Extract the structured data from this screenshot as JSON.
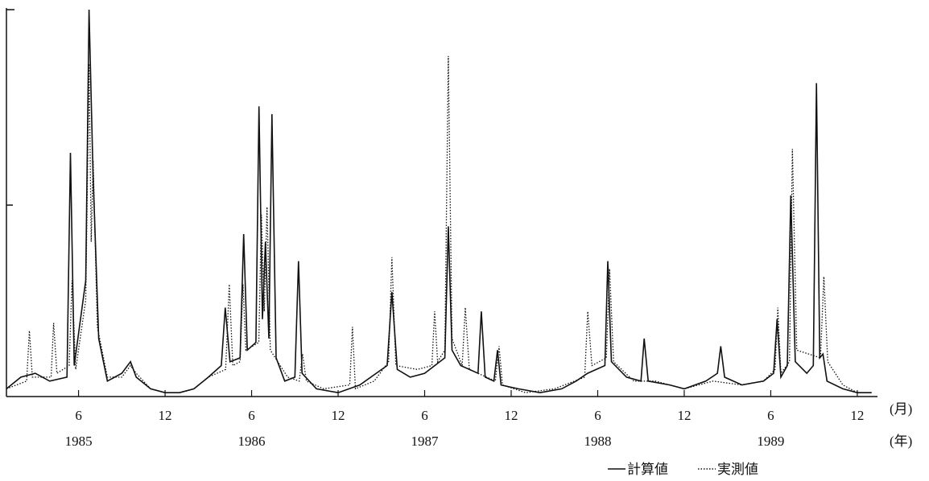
{
  "chart_data": {
    "type": "line",
    "x_unit_label": "(月)",
    "year_unit_label": "(年)",
    "xlim": [
      1,
      61.4
    ],
    "ylim": [
      0,
      100
    ],
    "xticks": [
      {
        "value": 6,
        "label": "6"
      },
      {
        "value": 12,
        "label": "12"
      },
      {
        "value": 18,
        "label": "6"
      },
      {
        "value": 24,
        "label": "12"
      },
      {
        "value": 30,
        "label": "6"
      },
      {
        "value": 36,
        "label": "12"
      },
      {
        "value": 42,
        "label": "6"
      },
      {
        "value": 48,
        "label": "12"
      },
      {
        "value": 54,
        "label": "6"
      },
      {
        "value": 60,
        "label": "12"
      }
    ],
    "year_labels": [
      {
        "value": 6,
        "label": "1985"
      },
      {
        "value": 18,
        "label": "1986"
      },
      {
        "value": 30,
        "label": "1987"
      },
      {
        "value": 42,
        "label": "1988"
      },
      {
        "value": 54,
        "label": "1989"
      }
    ],
    "series": [
      {
        "name": "計算値",
        "color": "#111111",
        "style": "solid",
        "x": [
          1,
          2,
          3,
          4,
          5.2,
          5.44,
          5.7,
          6.5,
          6.73,
          7.0,
          7.4,
          8,
          9,
          9.6,
          10,
          11,
          12,
          13,
          14,
          15,
          15.9,
          16.17,
          16.5,
          17.2,
          17.45,
          17.7,
          18.3,
          18.51,
          18.75,
          18.96,
          19.2,
          19.41,
          19.7,
          20.3,
          21.0,
          21.25,
          21.5,
          22.5,
          24,
          25.5,
          27.4,
          27.73,
          28.1,
          29,
          30,
          31.4,
          31.64,
          31.9,
          32.5,
          33.7,
          33.93,
          34.2,
          34.8,
          35.05,
          35.3,
          36.5,
          38,
          39.5,
          40.5,
          41.3,
          42.5,
          42.7,
          42.95,
          44,
          45.0,
          45.22,
          45.5,
          47,
          48,
          49.5,
          50.3,
          50.53,
          50.8,
          52,
          53.5,
          54.2,
          54.44,
          54.7,
          55.15,
          55.39,
          55.7,
          56.5,
          56.95,
          57.17,
          57.4,
          57.62,
          57.9,
          59,
          60,
          61
        ],
        "values": [
          2,
          5,
          6,
          4,
          5,
          63,
          8,
          30,
          100,
          58,
          15,
          4,
          6,
          9,
          5,
          2,
          1,
          1,
          2,
          5,
          8,
          23,
          9,
          10,
          42,
          12,
          14,
          75,
          20,
          40,
          15,
          73,
          10,
          4,
          5,
          35,
          6,
          2,
          1,
          3,
          8,
          27,
          7,
          5,
          6,
          10,
          44,
          12,
          8,
          6,
          22,
          5,
          4,
          12,
          3,
          2,
          1,
          2,
          4,
          6,
          8,
          35,
          9,
          5,
          4,
          15,
          4,
          3,
          2,
          4,
          6,
          13,
          5,
          3,
          4,
          6,
          20,
          5,
          8,
          52,
          9,
          6,
          8,
          81,
          10,
          11,
          4,
          2,
          1,
          1
        ]
      },
      {
        "name": "実測値",
        "color": "#111111",
        "style": "dotted",
        "x": [
          1,
          2.4,
          2.59,
          2.8,
          4.1,
          4.27,
          4.5,
          5.35,
          5.55,
          5.8,
          6.5,
          6.73,
          6.88,
          7.01,
          7.3,
          8,
          9,
          9.6,
          10,
          11,
          12,
          13,
          14,
          15,
          16.2,
          16.45,
          16.7,
          17.2,
          17.4,
          17.6,
          18.5,
          18.68,
          18.88,
          19.07,
          19.3,
          20.5,
          21.3,
          21.53,
          21.8,
          23,
          24.8,
          24.99,
          25.2,
          26.5,
          27.5,
          27.73,
          28.0,
          29.5,
          30.5,
          30.69,
          30.9,
          31.4,
          31.64,
          31.9,
          32.6,
          32.82,
          33.1,
          34.9,
          35.16,
          35.4,
          37,
          39,
          41.1,
          41.31,
          41.6,
          42.6,
          42.82,
          43.1,
          44.5,
          46,
          48,
          50,
          52,
          53.5,
          54.3,
          54.49,
          54.7,
          55.3,
          55.5,
          55.8,
          57.45,
          57.68,
          57.95,
          59,
          60,
          61
        ],
        "values": [
          2,
          4,
          17,
          5,
          5,
          19,
          6,
          8,
          30,
          7,
          25,
          86,
          40,
          61,
          18,
          5,
          5,
          8,
          6,
          2,
          1,
          1,
          2,
          5,
          7,
          29,
          8,
          9,
          29,
          12,
          14,
          47,
          22,
          49,
          12,
          5,
          4,
          11,
          4,
          2,
          3,
          18,
          2,
          4,
          9,
          36,
          8,
          7,
          8,
          22,
          9,
          12,
          88,
          15,
          8,
          23,
          7,
          4,
          13,
          3,
          1,
          2,
          5,
          22,
          8,
          10,
          33,
          9,
          4,
          4,
          2,
          4,
          3,
          4,
          7,
          23,
          6,
          9,
          64,
          12,
          10,
          31,
          9,
          3,
          1,
          1
        ]
      }
    ]
  }
}
